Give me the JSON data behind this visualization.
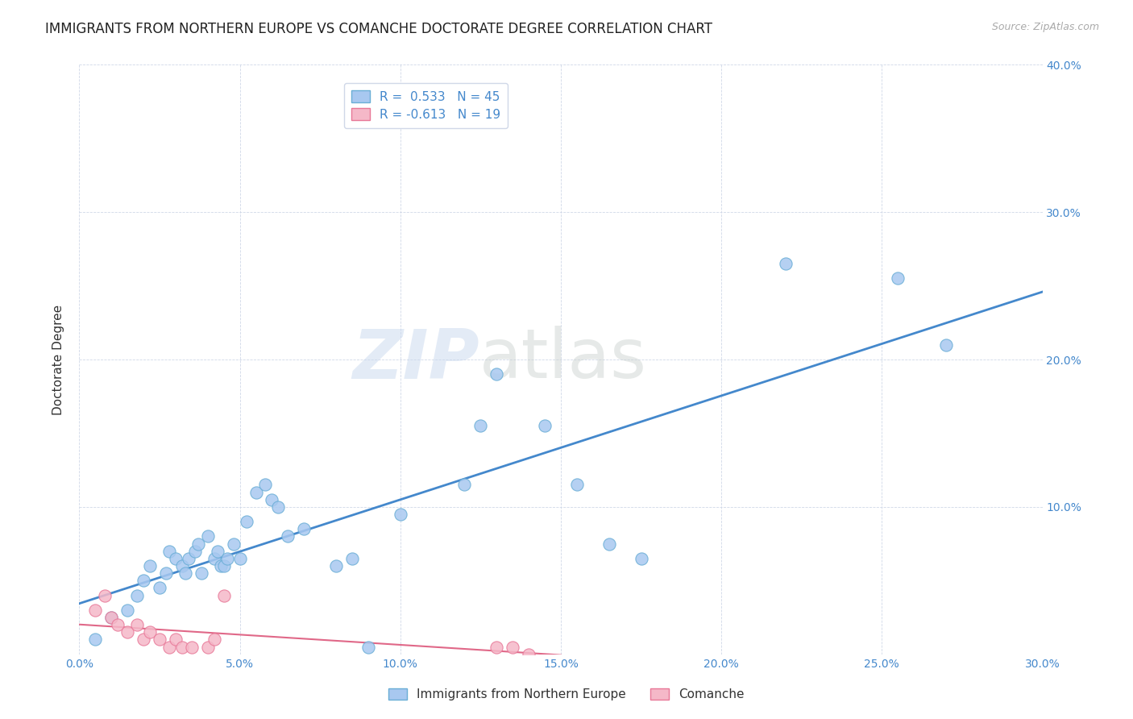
{
  "title": "IMMIGRANTS FROM NORTHERN EUROPE VS COMANCHE DOCTORATE DEGREE CORRELATION CHART",
  "source": "Source: ZipAtlas.com",
  "xlabel": "",
  "ylabel": "Doctorate Degree",
  "xlim": [
    0.0,
    0.3
  ],
  "ylim": [
    0.0,
    0.4
  ],
  "xticks": [
    0.0,
    0.05,
    0.1,
    0.15,
    0.2,
    0.25,
    0.3
  ],
  "yticks": [
    0.0,
    0.1,
    0.2,
    0.3,
    0.4
  ],
  "ytick_labels": [
    "",
    "10.0%",
    "20.0%",
    "30.0%",
    "40.0%"
  ],
  "xtick_labels": [
    "0.0%",
    "5.0%",
    "10.0%",
    "15.0%",
    "20.0%",
    "25.0%",
    "30.0%"
  ],
  "blue_color": "#a8c8f0",
  "blue_edge": "#6aaed6",
  "pink_color": "#f5b8c8",
  "pink_edge": "#e87898",
  "trend_blue": "#4488cc",
  "trend_pink": "#e06888",
  "legend_R_blue": "0.533",
  "legend_N_blue": "45",
  "legend_R_pink": "-0.613",
  "legend_N_pink": "19",
  "legend_label_blue": "Immigrants from Northern Europe",
  "legend_label_pink": "Comanche",
  "blue_scatter_x": [
    0.005,
    0.01,
    0.015,
    0.018,
    0.02,
    0.022,
    0.025,
    0.027,
    0.028,
    0.03,
    0.032,
    0.033,
    0.034,
    0.036,
    0.037,
    0.038,
    0.04,
    0.042,
    0.043,
    0.044,
    0.045,
    0.046,
    0.048,
    0.05,
    0.052,
    0.055,
    0.058,
    0.06,
    0.062,
    0.065,
    0.07,
    0.08,
    0.085,
    0.09,
    0.1,
    0.12,
    0.125,
    0.13,
    0.145,
    0.155,
    0.165,
    0.175,
    0.22,
    0.255,
    0.27
  ],
  "blue_scatter_y": [
    0.01,
    0.025,
    0.03,
    0.04,
    0.05,
    0.06,
    0.045,
    0.055,
    0.07,
    0.065,
    0.06,
    0.055,
    0.065,
    0.07,
    0.075,
    0.055,
    0.08,
    0.065,
    0.07,
    0.06,
    0.06,
    0.065,
    0.075,
    0.065,
    0.09,
    0.11,
    0.115,
    0.105,
    0.1,
    0.08,
    0.085,
    0.06,
    0.065,
    0.005,
    0.095,
    0.115,
    0.155,
    0.19,
    0.155,
    0.115,
    0.075,
    0.065,
    0.265,
    0.255,
    0.21
  ],
  "pink_scatter_x": [
    0.005,
    0.008,
    0.01,
    0.012,
    0.015,
    0.018,
    0.02,
    0.022,
    0.025,
    0.028,
    0.03,
    0.032,
    0.035,
    0.04,
    0.042,
    0.045,
    0.13,
    0.135,
    0.14
  ],
  "pink_scatter_y": [
    0.03,
    0.04,
    0.025,
    0.02,
    0.015,
    0.02,
    0.01,
    0.015,
    0.01,
    0.005,
    0.01,
    0.005,
    0.005,
    0.005,
    0.01,
    0.04,
    0.005,
    0.005,
    0.0
  ],
  "watermark_zip": "ZIP",
  "watermark_atlas": "atlas",
  "background_color": "#ffffff",
  "grid_color": "#d0d8e8",
  "title_fontsize": 12,
  "axis_label_fontsize": 11,
  "tick_fontsize": 10,
  "marker_size": 120
}
